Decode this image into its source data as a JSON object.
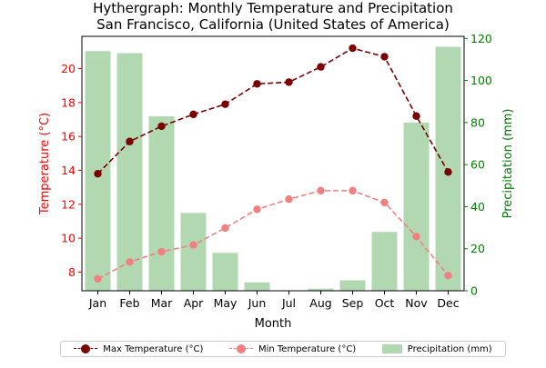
{
  "chart_data": {
    "type": "bar",
    "title_line1": "Hythergraph: Monthly Temperature and Precipitation",
    "title_line2": "San Francisco, California (United States of America)",
    "xlabel": "Month",
    "ylabel_left": "Temperature (°C)",
    "ylabel_right": "Precipitation (mm)",
    "categories": [
      "Jan",
      "Feb",
      "Mar",
      "Apr",
      "May",
      "Jun",
      "Jul",
      "Aug",
      "Sep",
      "Oct",
      "Nov",
      "Dec"
    ],
    "ylim_left": [
      6.9,
      21.9
    ],
    "ylim_right": [
      0,
      121
    ],
    "yticks_left": [
      8,
      10,
      12,
      14,
      16,
      18,
      20
    ],
    "yticks_right": [
      0,
      20,
      40,
      60,
      80,
      100,
      120
    ],
    "series": [
      {
        "name": "Max Temperature (°C)",
        "kind": "line",
        "axis": "left",
        "color": "#7b0000",
        "values": [
          13.8,
          15.7,
          16.6,
          17.3,
          17.9,
          19.1,
          19.2,
          20.1,
          21.2,
          20.7,
          17.2,
          13.9
        ]
      },
      {
        "name": "Min Temperature (°C)",
        "kind": "line",
        "axis": "left",
        "color": "#f08080",
        "values": [
          7.6,
          8.6,
          9.2,
          9.6,
          10.6,
          11.7,
          12.3,
          12.8,
          12.8,
          12.1,
          10.1,
          7.8
        ]
      },
      {
        "name": "Precipitation (mm)",
        "kind": "bar",
        "axis": "right",
        "color": "#b2d8b2",
        "values": [
          114,
          113,
          83,
          37,
          18,
          4,
          0,
          1,
          5,
          28,
          80,
          116
        ]
      }
    ],
    "left_axis_color": "#ff0000",
    "right_axis_color": "#008000",
    "legend_position": "bottom-center"
  }
}
